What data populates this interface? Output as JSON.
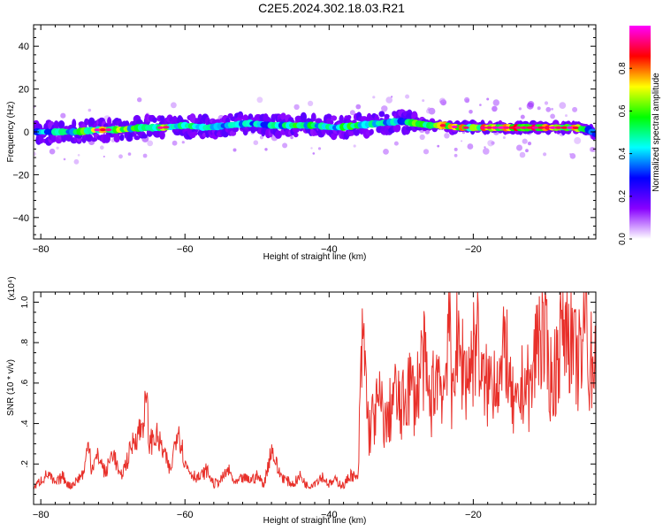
{
  "title": "C2E5.2024.302.18.03.R21",
  "chart_data": [
    {
      "type": "heatmap",
      "title": "C2E5.2024.302.18.03.R21",
      "xlabel": "Height of straight line (km)",
      "ylabel": "Frequency (Hz)",
      "xlim": [
        -81,
        -3
      ],
      "ylim": [
        -50,
        50
      ],
      "x_ticks": [
        -80,
        -60,
        -40,
        -20
      ],
      "y_ticks": [
        -40,
        -20,
        0,
        20,
        40
      ],
      "colorbar": {
        "label": "Normalized spectral amplitude",
        "range": [
          0,
          1
        ],
        "ticks": [
          "0.0",
          "0.2",
          "0.4",
          "0.6",
          "0.8"
        ],
        "colors": [
          "#ffffff",
          "#8800ff",
          "#0000ff",
          "#00ffff",
          "#00ff00",
          "#ffff00",
          "#ff0000",
          "#ff00ff"
        ]
      },
      "ridge": {
        "x": [
          -81,
          -78,
          -75,
          -72,
          -69,
          -66,
          -63,
          -60,
          -57,
          -54,
          -51,
          -48,
          -45,
          -42,
          -39,
          -36,
          -33,
          -30,
          -28,
          -26,
          -24,
          -22,
          -20,
          -18,
          -16,
          -14,
          -12,
          -10,
          -8,
          -6,
          -4,
          -3
        ],
        "y": [
          0,
          0,
          0,
          1,
          1,
          2,
          2,
          3,
          2,
          3,
          4,
          3,
          3,
          3,
          2,
          3,
          4,
          5,
          4,
          3,
          3,
          2,
          2,
          2,
          2,
          2,
          2,
          2,
          2,
          2,
          1,
          -1
        ],
        "amplitude": [
          0.4,
          0.5,
          0.6,
          0.8,
          0.7,
          0.6,
          0.8,
          0.6,
          0.5,
          0.5,
          0.5,
          0.5,
          0.6,
          0.6,
          0.6,
          0.6,
          0.5,
          0.5,
          0.7,
          0.7,
          0.8,
          0.8,
          0.8,
          0.9,
          0.9,
          0.9,
          0.9,
          0.9,
          0.9,
          0.8,
          0.5,
          0.4
        ]
      },
      "grid": false
    },
    {
      "type": "line",
      "title": "",
      "xlabel": "Height of straight line (km)",
      "ylabel": "SNR (10 * v/v)",
      "y_multiplier": "(x10⁴)",
      "xlim": [
        -81,
        -3
      ],
      "ylim": [
        0,
        1.05
      ],
      "x_ticks": [
        -80,
        -60,
        -40,
        -20
      ],
      "y_ticks": [
        0.2,
        0.4,
        0.6,
        0.8,
        1.0
      ],
      "series": [
        {
          "color": "#e8302a",
          "x": [
            -81,
            -80,
            -79,
            -78,
            -77,
            -76,
            -75,
            -74,
            -73.3,
            -73,
            -72,
            -71,
            -70,
            -69,
            -68,
            -67,
            -66,
            -65.3,
            -65,
            -64,
            -63,
            -62,
            -61,
            -60,
            -59,
            -58,
            -57,
            -56,
            -55,
            -54,
            -53,
            -52,
            -51,
            -50,
            -49,
            -48,
            -47,
            -46,
            -45,
            -44,
            -43,
            -42,
            -41,
            -40,
            -39,
            -38,
            -37,
            -36,
            -35.5,
            -35.2,
            -34.5,
            -34,
            -33,
            -32,
            -31,
            -30,
            -29,
            -28,
            -27,
            -26,
            -25,
            -24,
            -23.4,
            -23,
            -22.5,
            -22,
            -21.2,
            -21,
            -20,
            -19.3,
            -19,
            -18,
            -17,
            -16,
            -15.5,
            -15,
            -14,
            -13,
            -12,
            -11,
            -10,
            -9,
            -8,
            -7,
            -6,
            -5,
            -4.2,
            -4,
            -3.5,
            -3
          ],
          "y": [
            0.08,
            0.12,
            0.15,
            0.1,
            0.14,
            0.09,
            0.12,
            0.16,
            0.33,
            0.18,
            0.24,
            0.15,
            0.27,
            0.13,
            0.22,
            0.33,
            0.38,
            0.52,
            0.3,
            0.34,
            0.26,
            0.16,
            0.4,
            0.2,
            0.15,
            0.13,
            0.17,
            0.1,
            0.12,
            0.17,
            0.1,
            0.13,
            0.12,
            0.14,
            0.1,
            0.28,
            0.16,
            0.12,
            0.1,
            0.14,
            0.09,
            0.11,
            0.14,
            0.1,
            0.12,
            0.09,
            0.15,
            0.12,
            0.72,
            0.8,
            0.35,
            0.42,
            0.5,
            0.38,
            0.56,
            0.45,
            0.6,
            0.52,
            0.74,
            0.48,
            0.68,
            0.55,
            1.02,
            0.45,
            0.82,
            0.72,
            0.7,
            0.62,
            0.75,
            0.92,
            0.6,
            0.58,
            0.66,
            0.62,
            0.85,
            0.55,
            0.44,
            0.62,
            0.55,
            0.88,
            0.78,
            0.58,
            0.82,
            0.96,
            0.72,
            0.7,
            1.05,
            0.6,
            0.75,
            0.68
          ]
        }
      ],
      "grid": false
    }
  ]
}
